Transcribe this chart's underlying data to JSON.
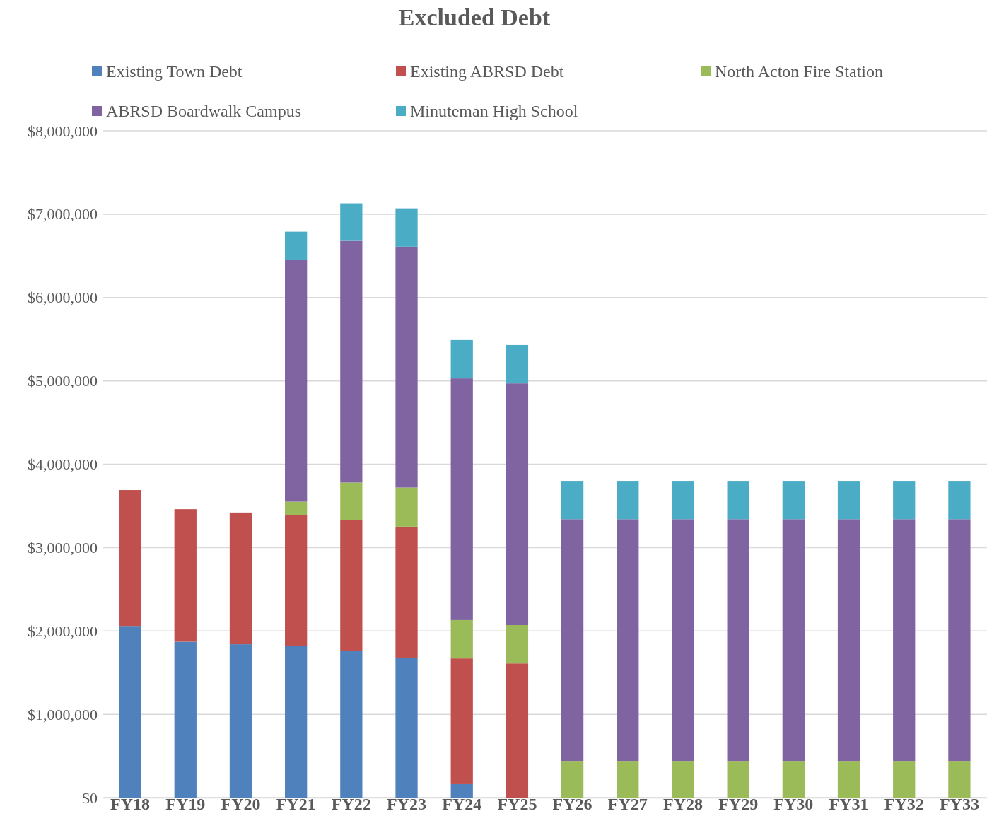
{
  "chart_data": {
    "type": "bar",
    "title": "Excluded Debt",
    "stacked": true,
    "legend": "top",
    "grid": "y",
    "categories": [
      "FY18",
      "FY19",
      "FY20",
      "FY21",
      "FY22",
      "FY23",
      "FY24",
      "FY25",
      "FY26",
      "FY27",
      "FY28",
      "FY29",
      "FY30",
      "FY31",
      "FY32",
      "FY33"
    ],
    "series": [
      {
        "name": "Existing Town Debt",
        "color": "#4f81bd",
        "values": [
          2060000,
          1870000,
          1840000,
          1820000,
          1760000,
          1680000,
          170000,
          null,
          null,
          null,
          null,
          null,
          null,
          null,
          null,
          null
        ]
      },
      {
        "name": "Existing ABRSD Debt",
        "color": "#c0504d",
        "values": [
          1630000,
          1590000,
          1580000,
          1570000,
          1570000,
          1570000,
          1500000,
          1610000,
          null,
          null,
          null,
          null,
          null,
          null,
          null,
          null
        ]
      },
      {
        "name": "North Acton Fire Station",
        "color": "#9bbb59",
        "values": [
          null,
          null,
          null,
          160000,
          450000,
          470000,
          460000,
          460000,
          440000,
          440000,
          440000,
          440000,
          440000,
          440000,
          440000,
          440000
        ]
      },
      {
        "name": "ABRSD Boardwalk Campus",
        "color": "#8064a2",
        "values": [
          null,
          null,
          null,
          2900000,
          2900000,
          2890000,
          2900000,
          2900000,
          2900000,
          2900000,
          2900000,
          2900000,
          2900000,
          2900000,
          2900000,
          2900000
        ]
      },
      {
        "name": "Minuteman High School",
        "color": "#4bacc6",
        "values": [
          null,
          null,
          null,
          340000,
          450000,
          460000,
          460000,
          460000,
          460000,
          460000,
          460000,
          460000,
          460000,
          460000,
          460000,
          460000
        ]
      }
    ],
    "ylim": [
      0,
      8000000
    ],
    "yticks": [
      {
        "value": 0,
        "label": "$0"
      },
      {
        "value": 1000000,
        "label": "$1,000,000"
      },
      {
        "value": 2000000,
        "label": "$2,000,000"
      },
      {
        "value": 3000000,
        "label": "$3,000,000"
      },
      {
        "value": 4000000,
        "label": "$4,000,000"
      },
      {
        "value": 5000000,
        "label": "$5,000,000"
      },
      {
        "value": 6000000,
        "label": "$6,000,000"
      },
      {
        "value": 7000000,
        "label": "$7,000,000"
      },
      {
        "value": 8000000,
        "label": "$8,000,000"
      }
    ]
  }
}
